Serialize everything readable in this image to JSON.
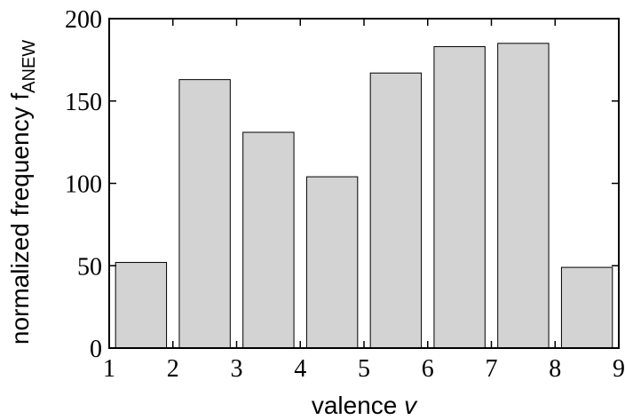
{
  "chart_data": {
    "type": "bar",
    "title": "",
    "xlabel": {
      "text": "valence ",
      "var": "v"
    },
    "ylabel": {
      "text": "normalized frequency f",
      "sub": "ANEW"
    },
    "xlim": [
      1,
      9
    ],
    "ylim": [
      0,
      200
    ],
    "xticks": [
      "1",
      "2",
      "3",
      "4",
      "5",
      "6",
      "7",
      "8",
      "9"
    ],
    "yticks": [
      "0",
      "50",
      "100",
      "150",
      "200"
    ],
    "bars": [
      {
        "x_start": 1.1,
        "x_end": 1.9,
        "value": 52
      },
      {
        "x_start": 2.1,
        "x_end": 2.9,
        "value": 163
      },
      {
        "x_start": 3.1,
        "x_end": 3.9,
        "value": 131
      },
      {
        "x_start": 4.1,
        "x_end": 4.9,
        "value": 104
      },
      {
        "x_start": 5.1,
        "x_end": 5.9,
        "value": 167
      },
      {
        "x_start": 6.1,
        "x_end": 6.9,
        "value": 183
      },
      {
        "x_start": 7.1,
        "x_end": 7.9,
        "value": 185
      },
      {
        "x_start": 8.1,
        "x_end": 8.9,
        "value": 49
      }
    ],
    "bar_color": "#d3d3d3",
    "edge_color": "#000000",
    "grid": false,
    "legend": "none"
  }
}
